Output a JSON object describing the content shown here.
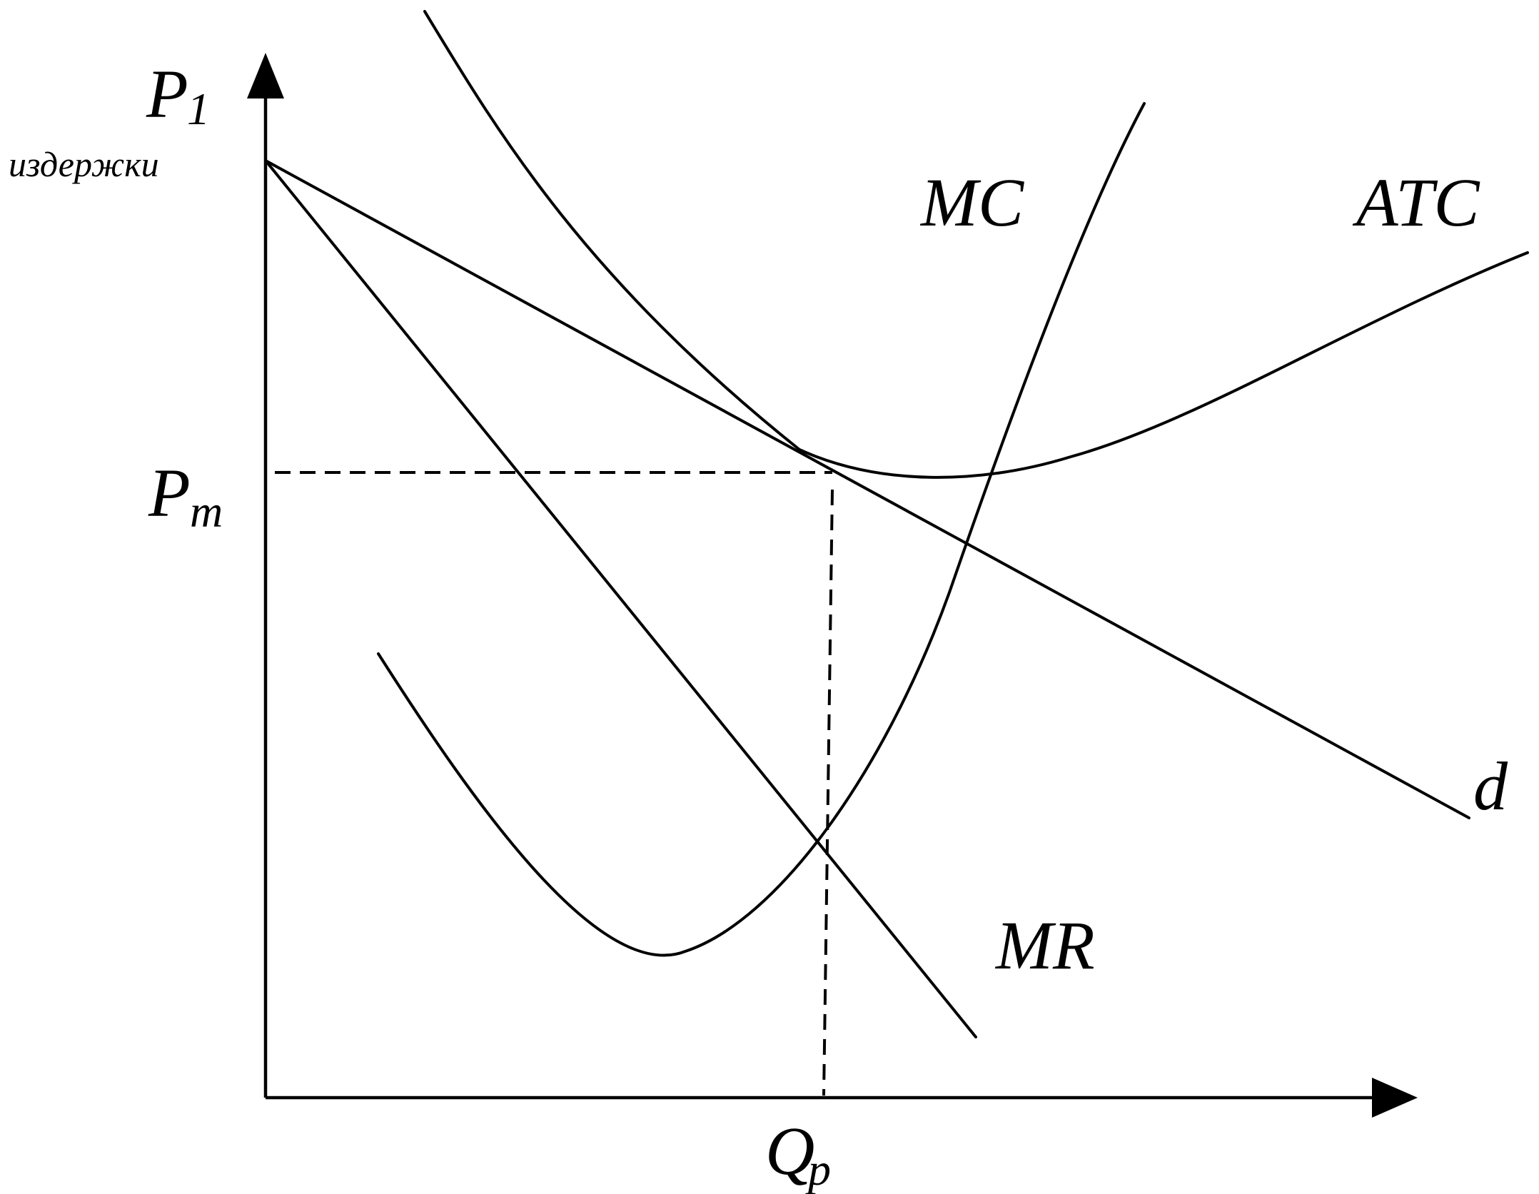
{
  "diagram": {
    "axes": {
      "y_label_main": "P",
      "y_label_sub": "1",
      "y_label_caption": "издержки",
      "x_tick_main": "Q",
      "x_tick_sub": "p",
      "y_tick_main": "P",
      "y_tick_sub": "m"
    },
    "curves": {
      "mc": "MC",
      "atc": "ATC",
      "demand": "d",
      "mr": "MR"
    },
    "colors": {
      "ink": "#000000",
      "background": "#ffffff"
    }
  }
}
